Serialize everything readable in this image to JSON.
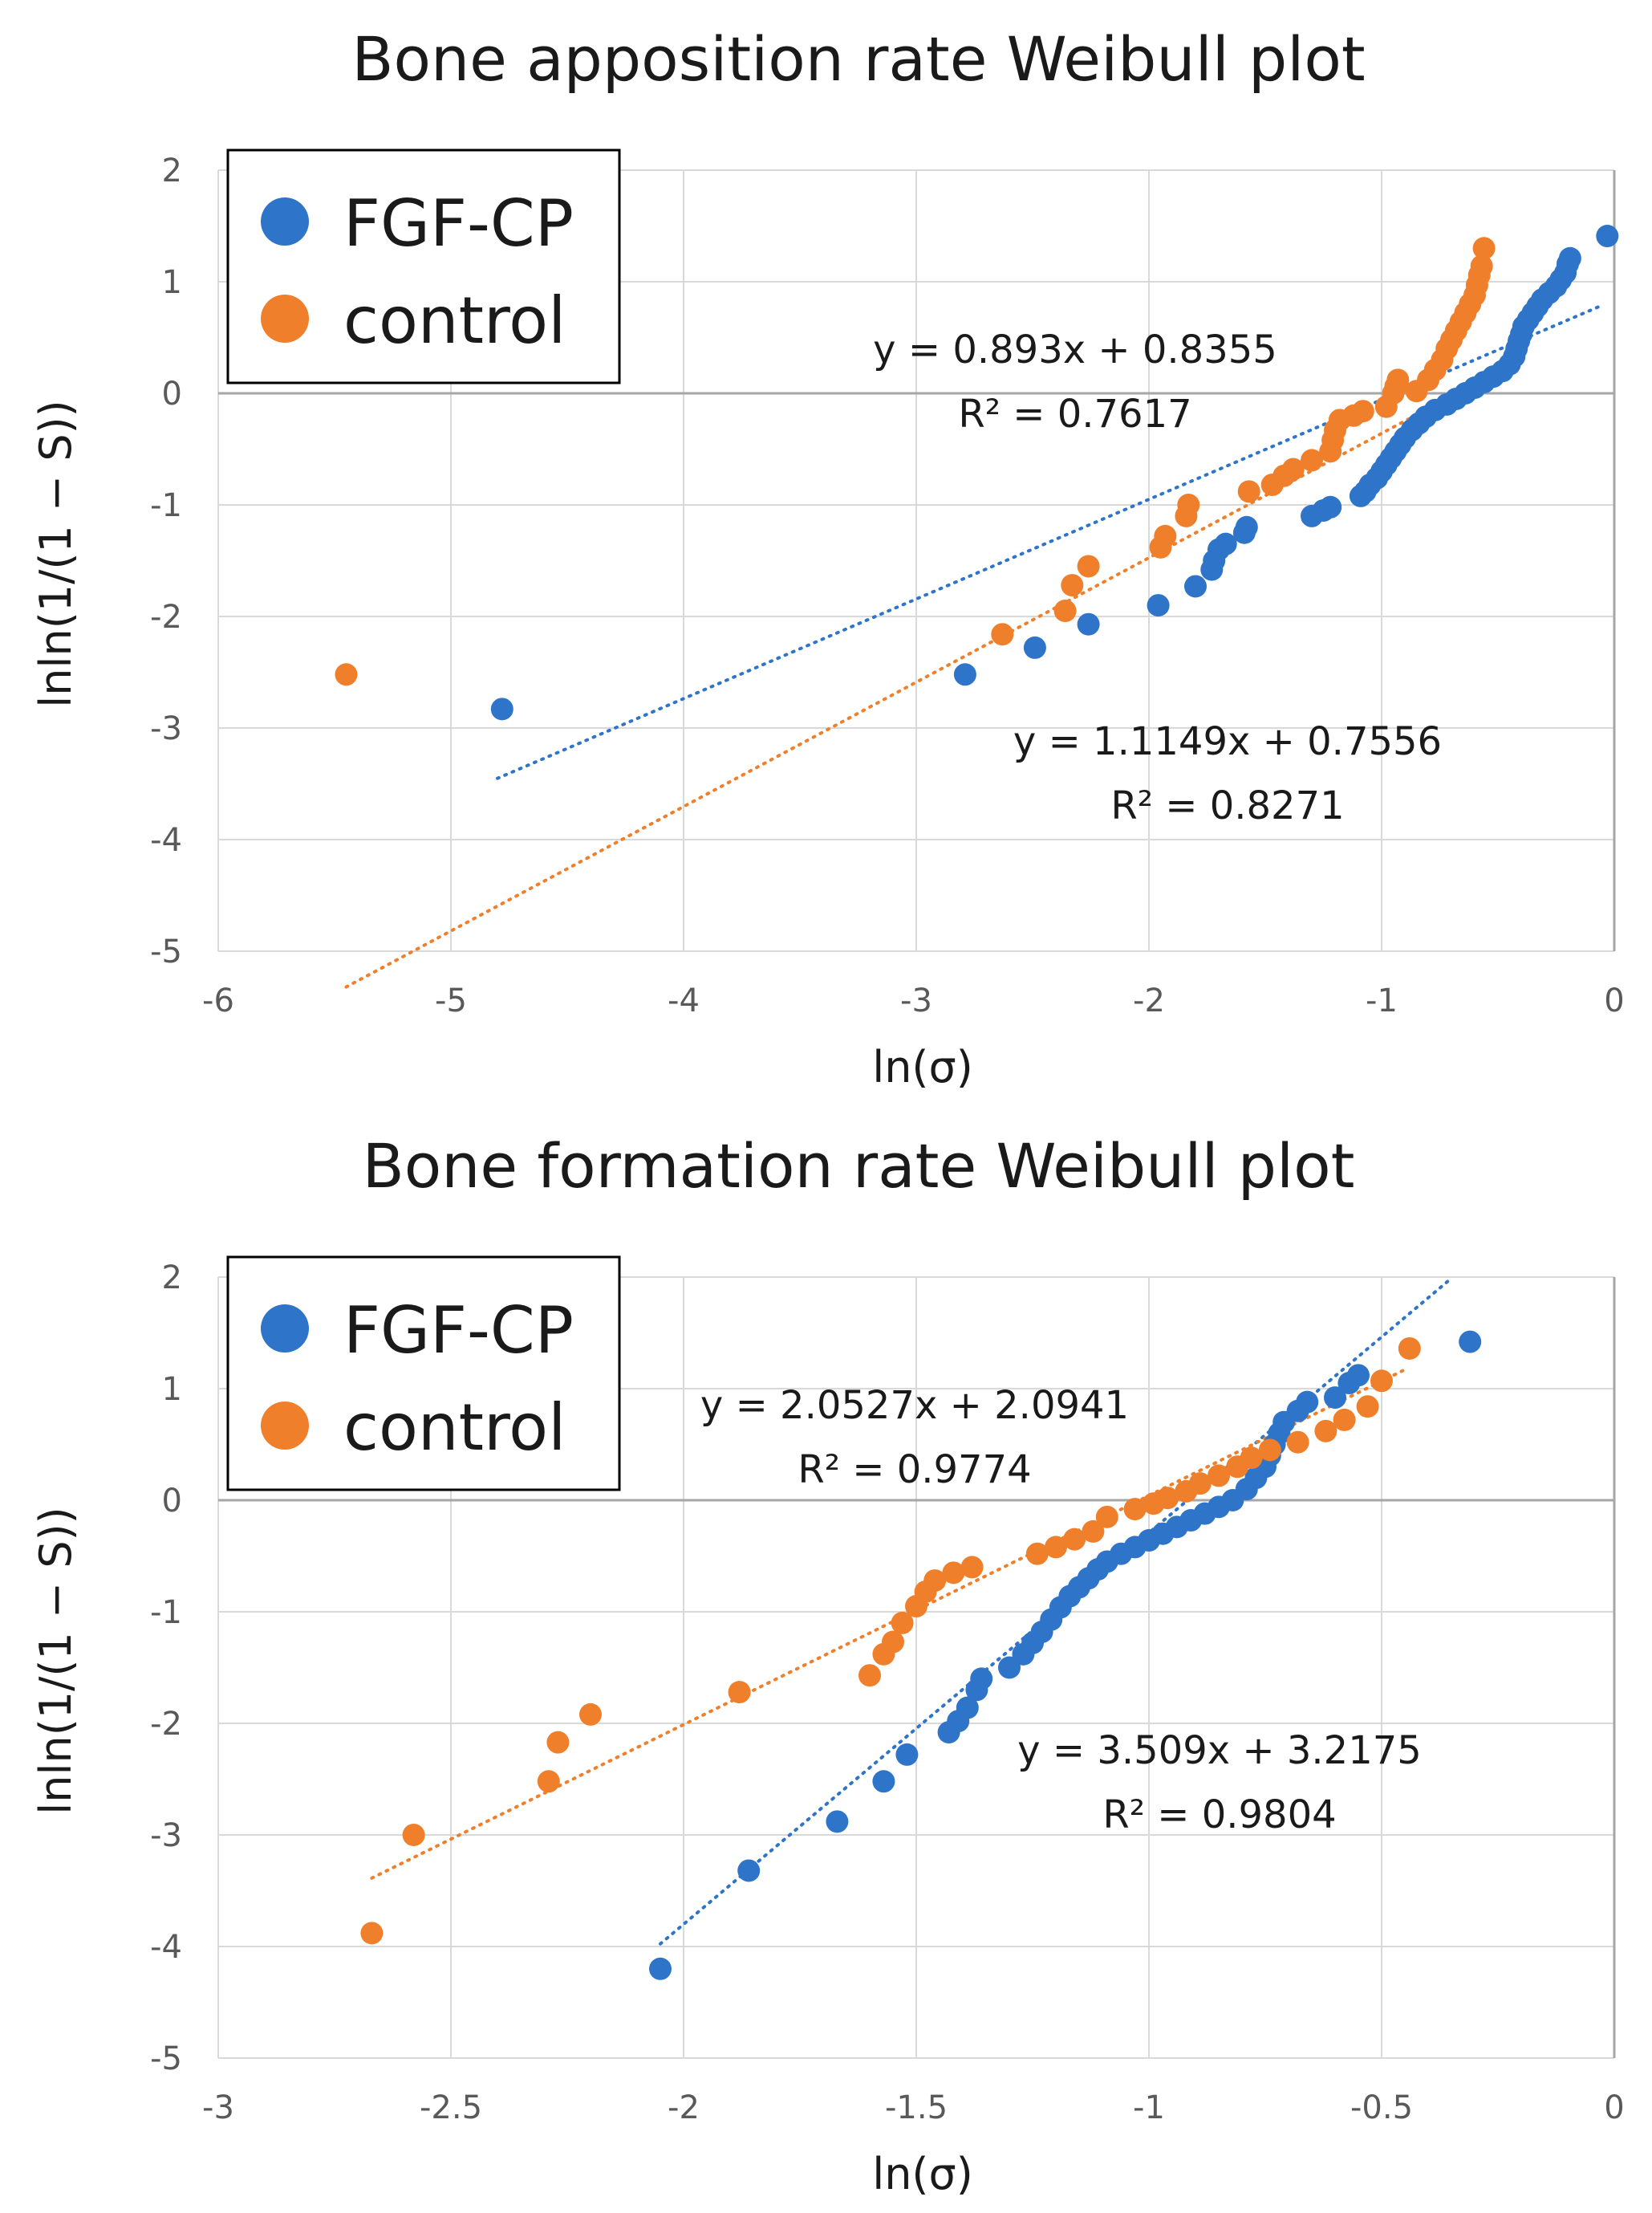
{
  "chart_data": [
    {
      "type": "scatter",
      "title": "Bone apposition rate Weibull plot",
      "xlabel": "ln(σ)",
      "ylabel": "lnln(1/(1 − S))",
      "xlim": [
        -6,
        0
      ],
      "ylim": [
        -5,
        2
      ],
      "x_ticks": [
        "-6",
        "-5",
        "-4",
        "-3",
        "-2",
        "-1",
        "0"
      ],
      "y_ticks": [
        "2",
        "1",
        "0",
        "-1",
        "-2",
        "-3",
        "-4",
        "-5"
      ],
      "grid": true,
      "legend_position": "top-left",
      "series": [
        {
          "name": "FGF-CP",
          "color": "#2e75c9",
          "points": [
            [
              -4.78,
              -2.83
            ],
            [
              -2.79,
              -2.52
            ],
            [
              -2.49,
              -2.28
            ],
            [
              -2.26,
              -2.07
            ],
            [
              -1.96,
              -1.9
            ],
            [
              -1.8,
              -1.73
            ],
            [
              -1.73,
              -1.58
            ],
            [
              -1.72,
              -1.5
            ],
            [
              -1.7,
              -1.4
            ],
            [
              -1.67,
              -1.35
            ],
            [
              -1.59,
              -1.25
            ],
            [
              -1.58,
              -1.2
            ],
            [
              -1.3,
              -1.1
            ],
            [
              -1.25,
              -1.05
            ],
            [
              -1.22,
              -1.02
            ],
            [
              -1.09,
              -0.92
            ],
            [
              -1.07,
              -0.88
            ],
            [
              -1.05,
              -0.82
            ],
            [
              -1.02,
              -0.76
            ],
            [
              -1.0,
              -0.7
            ],
            [
              -0.98,
              -0.64
            ],
            [
              -0.96,
              -0.58
            ],
            [
              -0.94,
              -0.52
            ],
            [
              -0.92,
              -0.46
            ],
            [
              -0.9,
              -0.4
            ],
            [
              -0.87,
              -0.33
            ],
            [
              -0.84,
              -0.27
            ],
            [
              -0.81,
              -0.21
            ],
            [
              -0.77,
              -0.15
            ],
            [
              -0.72,
              -0.1
            ],
            [
              -0.68,
              -0.05
            ],
            [
              -0.64,
              0.0
            ],
            [
              -0.6,
              0.05
            ],
            [
              -0.56,
              0.1
            ],
            [
              -0.52,
              0.15
            ],
            [
              -0.48,
              0.2
            ],
            [
              -0.45,
              0.26
            ],
            [
              -0.43,
              0.33
            ],
            [
              -0.42,
              0.4
            ],
            [
              -0.41,
              0.47
            ],
            [
              -0.4,
              0.53
            ],
            [
              -0.39,
              0.6
            ],
            [
              -0.37,
              0.66
            ],
            [
              -0.35,
              0.72
            ],
            [
              -0.33,
              0.78
            ],
            [
              -0.31,
              0.84
            ],
            [
              -0.28,
              0.9
            ],
            [
              -0.25,
              0.96
            ],
            [
              -0.23,
              1.02
            ],
            [
              -0.21,
              1.08
            ],
            [
              -0.2,
              1.16
            ],
            [
              -0.19,
              1.21
            ],
            [
              -0.03,
              1.41
            ]
          ],
          "trendline": {
            "slope": 0.893,
            "intercept": 0.8355,
            "r2": 0.7617,
            "x_range": [
              -4.8,
              -0.05
            ]
          }
        },
        {
          "name": "control",
          "color": "#f07f2b",
          "points": [
            [
              -5.45,
              -2.52
            ],
            [
              -2.63,
              -2.16
            ],
            [
              -2.36,
              -1.95
            ],
            [
              -2.33,
              -1.72
            ],
            [
              -2.26,
              -1.55
            ],
            [
              -1.95,
              -1.38
            ],
            [
              -1.93,
              -1.28
            ],
            [
              -1.84,
              -1.1
            ],
            [
              -1.83,
              -1.0
            ],
            [
              -1.57,
              -0.88
            ],
            [
              -1.47,
              -0.82
            ],
            [
              -1.42,
              -0.74
            ],
            [
              -1.38,
              -0.68
            ],
            [
              -1.3,
              -0.6
            ],
            [
              -1.22,
              -0.52
            ],
            [
              -1.21,
              -0.42
            ],
            [
              -1.2,
              -0.33
            ],
            [
              -1.18,
              -0.24
            ],
            [
              -1.12,
              -0.2
            ],
            [
              -1.08,
              -0.16
            ],
            [
              -0.98,
              -0.12
            ],
            [
              -0.95,
              0.0
            ],
            [
              -0.94,
              0.06
            ],
            [
              -0.93,
              0.12
            ],
            [
              -0.85,
              0.02
            ],
            [
              -0.8,
              0.12
            ],
            [
              -0.77,
              0.21
            ],
            [
              -0.74,
              0.3
            ],
            [
              -0.72,
              0.4
            ],
            [
              -0.7,
              0.48
            ],
            [
              -0.68,
              0.56
            ],
            [
              -0.66,
              0.64
            ],
            [
              -0.64,
              0.72
            ],
            [
              -0.62,
              0.8
            ],
            [
              -0.6,
              0.88
            ],
            [
              -0.59,
              0.97
            ],
            [
              -0.58,
              1.06
            ],
            [
              -0.57,
              1.14
            ],
            [
              -0.56,
              1.3
            ]
          ],
          "trendline": {
            "slope": 1.1149,
            "intercept": 0.7556,
            "r2": 0.8271,
            "x_range": [
              -5.45,
              -0.55
            ]
          }
        }
      ],
      "annotations": [
        {
          "eq": "y = 0.893x + 0.8355",
          "r2": "R² = 0.7617"
        },
        {
          "eq": "y = 1.1149x + 0.7556",
          "r2": "R² = 0.8271"
        }
      ]
    },
    {
      "type": "scatter",
      "title": "Bone formation rate Weibull plot",
      "xlabel": "ln(σ)",
      "ylabel": "lnln(1/(1 − S))",
      "xlim": [
        -3,
        0
      ],
      "ylim": [
        -5,
        2
      ],
      "x_ticks": [
        "-3",
        "-2.5",
        "-2",
        "-1.5",
        "-1",
        "-0.5",
        "0"
      ],
      "y_ticks": [
        "2",
        "1",
        "0",
        "-1",
        "-2",
        "-3",
        "-4",
        "-5"
      ],
      "grid": true,
      "legend_position": "top-left",
      "series": [
        {
          "name": "FGF-CP",
          "color": "#2e75c9",
          "points": [
            [
              -2.05,
              -4.2
            ],
            [
              -1.86,
              -3.32
            ],
            [
              -1.67,
              -2.88
            ],
            [
              -1.57,
              -2.52
            ],
            [
              -1.52,
              -2.28
            ],
            [
              -1.43,
              -2.08
            ],
            [
              -1.41,
              -1.98
            ],
            [
              -1.39,
              -1.86
            ],
            [
              -1.37,
              -1.7
            ],
            [
              -1.36,
              -1.6
            ],
            [
              -1.3,
              -1.5
            ],
            [
              -1.27,
              -1.38
            ],
            [
              -1.25,
              -1.28
            ],
            [
              -1.23,
              -1.18
            ],
            [
              -1.21,
              -1.07
            ],
            [
              -1.19,
              -0.96
            ],
            [
              -1.17,
              -0.86
            ],
            [
              -1.15,
              -0.78
            ],
            [
              -1.13,
              -0.7
            ],
            [
              -1.11,
              -0.62
            ],
            [
              -1.09,
              -0.55
            ],
            [
              -1.06,
              -0.48
            ],
            [
              -1.03,
              -0.42
            ],
            [
              -1.0,
              -0.36
            ],
            [
              -0.97,
              -0.3
            ],
            [
              -0.94,
              -0.24
            ],
            [
              -0.91,
              -0.18
            ],
            [
              -0.88,
              -0.12
            ],
            [
              -0.85,
              -0.06
            ],
            [
              -0.82,
              0.0
            ],
            [
              -0.79,
              0.1
            ],
            [
              -0.77,
              0.2
            ],
            [
              -0.75,
              0.3
            ],
            [
              -0.74,
              0.4
            ],
            [
              -0.73,
              0.5
            ],
            [
              -0.72,
              0.6
            ],
            [
              -0.71,
              0.7
            ],
            [
              -0.68,
              0.8
            ],
            [
              -0.66,
              0.88
            ],
            [
              -0.6,
              0.92
            ],
            [
              -0.57,
              1.05
            ],
            [
              -0.55,
              1.12
            ],
            [
              -0.31,
              1.42
            ]
          ],
          "trendline": {
            "slope": 3.509,
            "intercept": 3.2175,
            "r2": 0.9804,
            "x_range": [
              -2.05,
              -0.35
            ]
          }
        },
        {
          "name": "control",
          "color": "#f07f2b",
          "points": [
            [
              -2.67,
              -3.88
            ],
            [
              -2.58,
              -3.0
            ],
            [
              -2.29,
              -2.52
            ],
            [
              -2.27,
              -2.17
            ],
            [
              -2.2,
              -1.92
            ],
            [
              -1.88,
              -1.72
            ],
            [
              -1.6,
              -1.57
            ],
            [
              -1.57,
              -1.38
            ],
            [
              -1.55,
              -1.27
            ],
            [
              -1.53,
              -1.1
            ],
            [
              -1.5,
              -0.95
            ],
            [
              -1.48,
              -0.82
            ],
            [
              -1.46,
              -0.72
            ],
            [
              -1.42,
              -0.65
            ],
            [
              -1.38,
              -0.6
            ],
            [
              -1.24,
              -0.48
            ],
            [
              -1.2,
              -0.42
            ],
            [
              -1.16,
              -0.35
            ],
            [
              -1.12,
              -0.28
            ],
            [
              -1.09,
              -0.15
            ],
            [
              -1.03,
              -0.08
            ],
            [
              -0.99,
              -0.03
            ],
            [
              -0.96,
              0.02
            ],
            [
              -0.92,
              0.08
            ],
            [
              -0.89,
              0.15
            ],
            [
              -0.85,
              0.22
            ],
            [
              -0.81,
              0.3
            ],
            [
              -0.78,
              0.38
            ],
            [
              -0.74,
              0.45
            ],
            [
              -0.68,
              0.52
            ],
            [
              -0.62,
              0.62
            ],
            [
              -0.58,
              0.72
            ],
            [
              -0.53,
              0.84
            ],
            [
              -0.5,
              1.07
            ],
            [
              -0.44,
              1.36
            ]
          ],
          "trendline": {
            "slope": 2.0527,
            "intercept": 2.0941,
            "r2": 0.9774,
            "x_range": [
              -2.67,
              -0.45
            ]
          }
        }
      ],
      "annotations": [
        {
          "eq": "y = 2.0527x + 2.0941",
          "r2": "R² = 0.9774"
        },
        {
          "eq": "y = 3.509x + 3.2175",
          "r2": "R² = 0.9804"
        }
      ]
    }
  ]
}
